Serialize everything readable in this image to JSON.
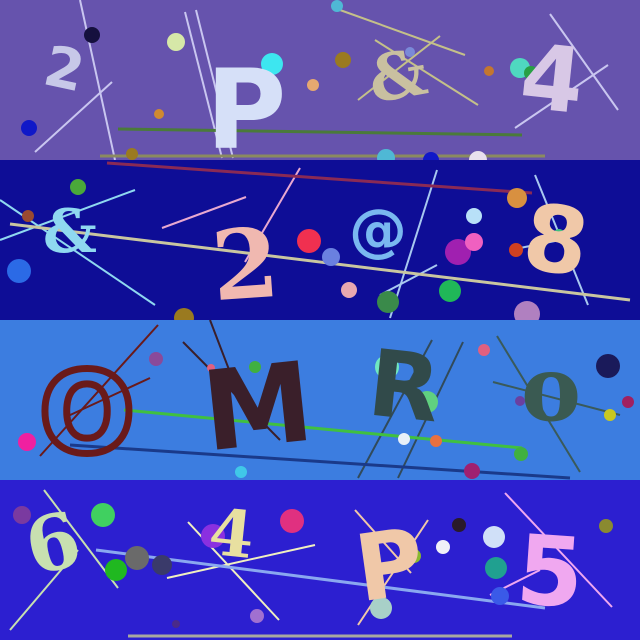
{
  "captcha": {
    "rows": [
      {
        "background": "#6653ad",
        "chars": [
          "2",
          "P",
          "&",
          "4"
        ]
      },
      {
        "background": "#0e0d96",
        "chars": [
          "&",
          "2",
          "@",
          "8"
        ]
      },
      {
        "background": "#3c7de0",
        "chars": [
          "O",
          "M",
          "R",
          "o"
        ]
      },
      {
        "background": "#2c1fd0",
        "chars": [
          "6",
          "4",
          "P",
          "5"
        ]
      }
    ]
  }
}
